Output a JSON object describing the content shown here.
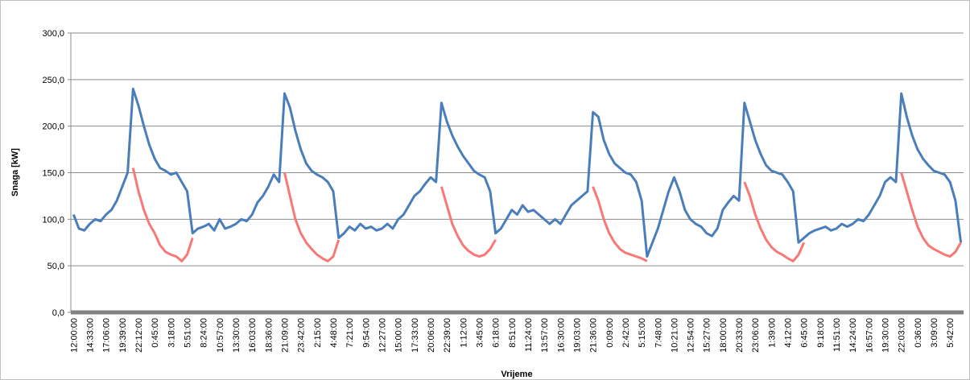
{
  "chart_data": {
    "type": "line",
    "y_label": "Snaga [kW]",
    "x_label": "Vrijeme",
    "ylim": [
      0,
      300
    ],
    "yticks": [
      {
        "value": 0,
        "label": "0,0"
      },
      {
        "value": 50,
        "label": "50,0"
      },
      {
        "value": 100,
        "label": "100,0"
      },
      {
        "value": 150,
        "label": "150,0"
      },
      {
        "value": 200,
        "label": "200,0"
      },
      {
        "value": 250,
        "label": "250,0"
      },
      {
        "value": 300,
        "label": "300,0"
      }
    ],
    "grid": true,
    "categories": [
      "12:00:00",
      null,
      null,
      "14:33:00",
      null,
      null,
      "17:06:00",
      null,
      null,
      "19:39:00",
      null,
      null,
      "22:12:00",
      null,
      null,
      "0:45:00",
      null,
      null,
      "3:18:00",
      null,
      null,
      "5:51:00",
      null,
      null,
      "8:24:00",
      null,
      null,
      "10:57:00",
      null,
      null,
      "13:30:00",
      null,
      null,
      "16:03:00",
      null,
      null,
      "18:36:00",
      null,
      null,
      "21:09:00",
      null,
      null,
      "23:42:00",
      null,
      null,
      "2:15:00",
      null,
      null,
      "4:48:00",
      null,
      null,
      "7:21:00",
      null,
      null,
      "9:54:00",
      null,
      null,
      "12:27:00",
      null,
      null,
      "15:00:00",
      null,
      null,
      "17:33:00",
      null,
      null,
      "20:06:00",
      null,
      null,
      "22:39:00",
      null,
      null,
      "1:12:00",
      null,
      null,
      "3:45:00",
      null,
      null,
      "6:18:00",
      null,
      null,
      "8:51:00",
      null,
      null,
      "11:24:00",
      null,
      null,
      "13:57:00",
      null,
      null,
      "16:30:00",
      null,
      null,
      "19:03:00",
      null,
      null,
      "21:36:00",
      null,
      null,
      "0:09:00",
      null,
      null,
      "2:42:00",
      null,
      null,
      "5:15:00",
      null,
      null,
      "7:48:00",
      null,
      null,
      "10:21:00",
      null,
      null,
      "12:54:00",
      null,
      null,
      "15:27:00",
      null,
      null,
      "18:00:00",
      null,
      null,
      "20:33:00",
      null,
      null,
      "23:06:00",
      null,
      null,
      "1:39:00",
      null,
      null,
      "4:12:00",
      null,
      null,
      "6:45:00",
      null,
      null,
      "9:18:00",
      null,
      null,
      "11:51:00",
      null,
      null,
      "14:24:00",
      null,
      null,
      "16:57:00",
      null,
      null,
      "19:30:00",
      null,
      null,
      "22:03:00",
      null,
      null,
      "0:36:00",
      null,
      null,
      "3:09:00",
      null,
      null,
      "5:42:00",
      null,
      null
    ],
    "series": [
      {
        "color": "#4a7ebb",
        "values": [
          105,
          90,
          88,
          95,
          100,
          98,
          105,
          110,
          120,
          135,
          150,
          240,
          222,
          200,
          180,
          165,
          155,
          152,
          148,
          150,
          140,
          130,
          85,
          90,
          92,
          95,
          88,
          100,
          90,
          92,
          95,
          100,
          98,
          105,
          118,
          125,
          135,
          148,
          140,
          235,
          220,
          195,
          175,
          160,
          152,
          148,
          145,
          140,
          130,
          80,
          85,
          92,
          88,
          95,
          90,
          92,
          88,
          90,
          95,
          90,
          100,
          105,
          115,
          125,
          130,
          138,
          145,
          140,
          225,
          205,
          190,
          178,
          168,
          160,
          152,
          148,
          145,
          130,
          85,
          90,
          100,
          110,
          105,
          115,
          108,
          110,
          105,
          100,
          95,
          100,
          95,
          105,
          115,
          120,
          125,
          130,
          215,
          210,
          185,
          170,
          160,
          155,
          150,
          148,
          140,
          120,
          60,
          75,
          90,
          110,
          130,
          145,
          130,
          110,
          100,
          95,
          92,
          85,
          82,
          90,
          110,
          118,
          125,
          120,
          225,
          205,
          185,
          170,
          158,
          152,
          150,
          148,
          140,
          130,
          75,
          80,
          85,
          88,
          90,
          92,
          88,
          90,
          95,
          92,
          95,
          100,
          98,
          105,
          115,
          125,
          140,
          145,
          140,
          235,
          210,
          190,
          175,
          165,
          158,
          152,
          150,
          148,
          140,
          120,
          75
        ]
      },
      {
        "color": "#f87878",
        "values": [
          null,
          null,
          null,
          null,
          null,
          null,
          null,
          null,
          null,
          null,
          null,
          155,
          130,
          110,
          95,
          85,
          72,
          65,
          62,
          60,
          55,
          62,
          80,
          null,
          null,
          null,
          null,
          null,
          null,
          null,
          null,
          null,
          null,
          null,
          null,
          null,
          null,
          null,
          null,
          150,
          125,
          100,
          85,
          75,
          68,
          62,
          58,
          55,
          60,
          78,
          null,
          null,
          null,
          null,
          null,
          null,
          null,
          null,
          null,
          null,
          null,
          null,
          null,
          null,
          null,
          null,
          null,
          null,
          135,
          115,
          95,
          82,
          72,
          66,
          62,
          60,
          62,
          68,
          78,
          null,
          null,
          null,
          null,
          null,
          null,
          null,
          null,
          null,
          null,
          null,
          null,
          null,
          null,
          null,
          null,
          null,
          135,
          120,
          100,
          85,
          75,
          68,
          64,
          62,
          60,
          58,
          55,
          null,
          null,
          null,
          null,
          null,
          null,
          null,
          null,
          null,
          null,
          null,
          null,
          null,
          null,
          null,
          null,
          null,
          140,
          125,
          105,
          90,
          78,
          70,
          65,
          62,
          58,
          55,
          62,
          75,
          null,
          null,
          null,
          null,
          null,
          null,
          null,
          null,
          null,
          null,
          null,
          null,
          null,
          null,
          null,
          null,
          null,
          150,
          130,
          110,
          92,
          80,
          72,
          68,
          65,
          62,
          60,
          65,
          75
        ]
      }
    ]
  }
}
